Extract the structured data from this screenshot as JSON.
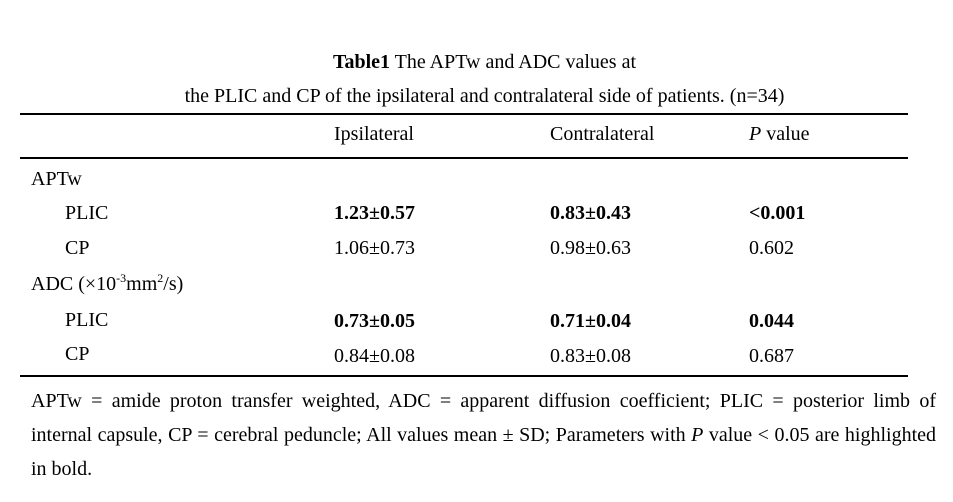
{
  "caption": {
    "label": "Table1",
    "line1": " The APTw and ADC values at",
    "line2": "the PLIC and CP of the ipsilateral and contralateral side of patients. (n=34)"
  },
  "header": {
    "col1": "Ipsilateral",
    "col2": "Contralateral",
    "col3_italic": "P",
    "col3_rest": " value"
  },
  "groups": [
    {
      "label": "APTw",
      "rows": [
        {
          "label": "PLIC",
          "ipsilateral": "1.23±0.57",
          "contralateral": "0.83±0.43",
          "p": "<0.001",
          "bold": true
        },
        {
          "label": "CP",
          "ipsilateral": "1.06±0.73",
          "contralateral": "0.98±0.63",
          "p": "0.602",
          "bold": false
        }
      ]
    },
    {
      "label_parts": [
        "ADC (×10",
        "-3",
        "mm",
        "2",
        "/s)"
      ],
      "rows": [
        {
          "label": "PLIC",
          "ipsilateral": "0.73±0.05",
          "contralateral": "0.71±0.04",
          "p": "0.044",
          "bold": true
        },
        {
          "label": "CP",
          "ipsilateral": "0.84±0.08",
          "contralateral": "0.83±0.08",
          "p": "0.687",
          "bold": false
        }
      ]
    }
  ],
  "footnote": {
    "part1": "APTw = amide proton transfer weighted, ADC = apparent diffusion coefficient; PLIC = posterior limb of internal capsule, CP = cerebral peduncle; All values mean ± SD; Parameters with ",
    "italic": "P",
    "part2": " value < 0.05 are highlighted in bold."
  }
}
